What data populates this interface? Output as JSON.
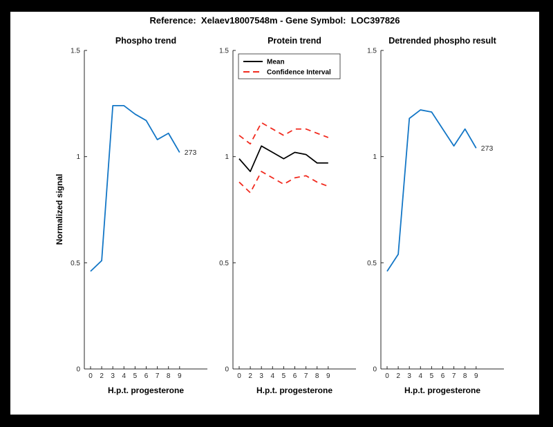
{
  "window": {
    "title": "Reference:  Xelaev18007548m - Gene Symbol:  LOC397826"
  },
  "colors": {
    "blue": "#1276C6",
    "red": "#F12A1E",
    "black": "#000000",
    "axis": "#262626",
    "canvas": "#FFFFFF",
    "frame": "#000000"
  },
  "chart_data": [
    {
      "type": "line",
      "title": "Phospho trend",
      "xlabel": "H.p.t. progesterone",
      "ylabel": "Normalized signal",
      "x_tick_labels": [
        "0",
        "2",
        "3",
        "4",
        "5",
        "6",
        "7",
        "8",
        "9"
      ],
      "y_ticks": [
        0,
        0.5,
        1,
        1.5
      ],
      "ylim": [
        0,
        1.5
      ],
      "grid": false,
      "series": [
        {
          "name": "Phospho",
          "color_key": "blue",
          "style": "solid",
          "values": [
            0.46,
            0.51,
            1.24,
            1.24,
            1.2,
            1.17,
            1.08,
            1.11,
            1.02
          ]
        }
      ],
      "end_label": "273",
      "legend": null
    },
    {
      "type": "line",
      "title": "Protein trend",
      "xlabel": "H.p.t. progesterone",
      "ylabel": "",
      "x_tick_labels": [
        "0",
        "2",
        "3",
        "4",
        "5",
        "6",
        "7",
        "8",
        "9"
      ],
      "y_ticks": [
        0,
        0.5,
        1,
        1.5
      ],
      "ylim": [
        0,
        1.5
      ],
      "grid": false,
      "series": [
        {
          "name": "Mean",
          "color_key": "black",
          "style": "solid",
          "values": [
            0.99,
            0.93,
            1.05,
            1.02,
            0.99,
            1.02,
            1.01,
            0.97,
            0.97
          ]
        },
        {
          "name": "CI upper",
          "color_key": "red",
          "style": "dashed",
          "values": [
            1.1,
            1.06,
            1.16,
            1.13,
            1.1,
            1.13,
            1.13,
            1.11,
            1.09
          ]
        },
        {
          "name": "CI lower",
          "color_key": "red",
          "style": "dashed",
          "values": [
            0.88,
            0.83,
            0.93,
            0.9,
            0.87,
            0.9,
            0.91,
            0.88,
            0.86
          ]
        }
      ],
      "end_label": null,
      "legend": {
        "position": "northwest",
        "entries": [
          {
            "label": "Mean",
            "color_key": "black",
            "style": "solid"
          },
          {
            "label": "Confidence Interval",
            "color_key": "red",
            "style": "dashed"
          }
        ]
      }
    },
    {
      "type": "line",
      "title": "Detrended phospho result",
      "xlabel": "H.p.t. progesterone",
      "ylabel": "",
      "x_tick_labels": [
        "0",
        "2",
        "3",
        "4",
        "5",
        "6",
        "7",
        "8",
        "9"
      ],
      "y_ticks": [
        0,
        0.5,
        1,
        1.5
      ],
      "ylim": [
        0,
        1.5
      ],
      "grid": false,
      "series": [
        {
          "name": "Detrended phospho",
          "color_key": "blue",
          "style": "solid",
          "values": [
            0.46,
            0.54,
            1.18,
            1.22,
            1.21,
            1.13,
            1.05,
            1.13,
            1.04
          ]
        }
      ],
      "end_label": "273",
      "legend": null
    }
  ]
}
